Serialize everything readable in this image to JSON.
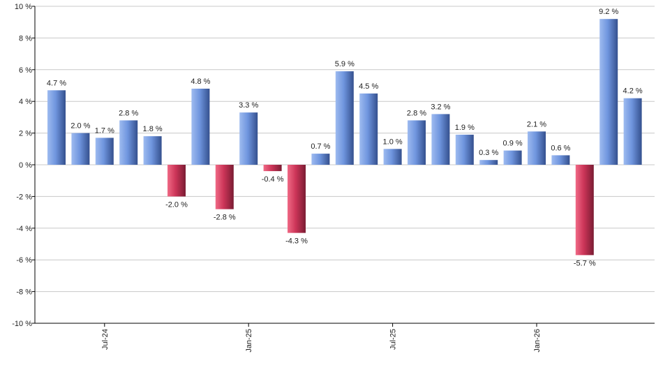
{
  "chart_data": {
    "type": "bar",
    "title": "",
    "xlabel": "",
    "ylabel": "",
    "ylim": [
      -10,
      10
    ],
    "y_ticks": [
      10,
      8,
      6,
      4,
      2,
      0,
      -2,
      -4,
      -6,
      -8,
      -10
    ],
    "y_tick_labels": [
      "10 %",
      "8 %",
      "6 %",
      "4 %",
      "2 %",
      "0 %",
      "-2 %",
      "-4 %",
      "-6 %",
      "-8 %",
      "-10 %"
    ],
    "x_tick_labels": [
      {
        "index": 2,
        "label": "Jul-24"
      },
      {
        "index": 8,
        "label": "Jan-25"
      },
      {
        "index": 14,
        "label": "Jul-25"
      },
      {
        "index": 20,
        "label": "Jan-26"
      }
    ],
    "values": [
      4.7,
      2.0,
      1.7,
      2.8,
      1.8,
      -2.0,
      4.8,
      -2.8,
      3.3,
      -0.4,
      -4.3,
      0.7,
      5.9,
      4.5,
      1.0,
      2.8,
      3.2,
      1.9,
      0.3,
      0.9,
      2.1,
      0.6,
      -5.7,
      9.2,
      4.2
    ],
    "value_labels": [
      "4.7 %",
      "2.0 %",
      "1.7 %",
      "2.8 %",
      "1.8 %",
      "-2.0 %",
      "4.8 %",
      "-2.8 %",
      "3.3 %",
      "-0.4 %",
      "-4.3 %",
      "0.7 %",
      "5.9 %",
      "4.5 %",
      "1.0 %",
      "2.8 %",
      "3.2 %",
      "1.9 %",
      "0.3 %",
      "0.9 %",
      "2.1 %",
      "0.6 %",
      "-5.7 %",
      "9.2 %",
      "4.2 %"
    ],
    "grid": true,
    "legend": "none",
    "colors": {
      "positive": "#5b86d6",
      "negative": "#c23052",
      "grid": "#c8c8c8",
      "axis": "#000000"
    }
  }
}
